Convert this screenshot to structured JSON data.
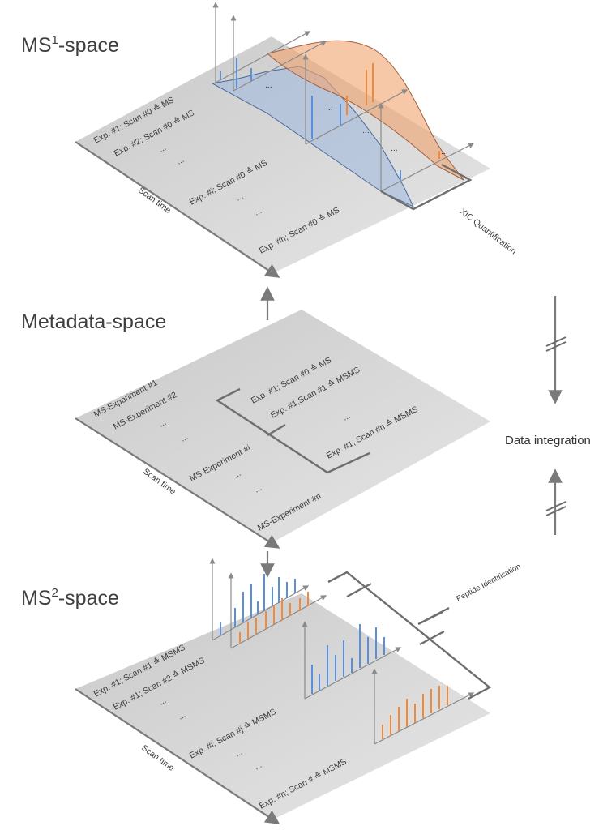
{
  "ms1": {
    "title_main": "MS",
    "title_sup": "1",
    "title_rest": "-space",
    "rows": [
      "Exp. #1; Scan #0 ≙ MS",
      "Exp. #2; Scan #0 ≙ MS",
      "...",
      "...",
      "Exp. #i; Scan #0 ≙ MS",
      "...",
      "...",
      "Exp. #n; Scan #0 ≙ MS"
    ],
    "axis": "Scan time",
    "dots": [
      "...",
      "...",
      "...",
      "...",
      "..."
    ],
    "quant_label": "XIC Quantification"
  },
  "meta": {
    "title": "Metadata-space",
    "rows": [
      "MS-Experiment #1",
      "MS-Experiment #2",
      "...",
      "...",
      "MS-Experiment #i",
      "...",
      "...",
      "MS-Experiment  #n"
    ],
    "axis": "Scan time",
    "subrows": [
      "Exp. #1; Scan #0 ≙ MS",
      "Exp. #1;Scan #1 ≙ MSMS",
      "...",
      "Exp. #1; Scan #n ≙ MSMS"
    ]
  },
  "ms2": {
    "title_main": "MS",
    "title_sup": "2",
    "title_rest": "-space",
    "rows": [
      "Exp. #1; Scan #1 ≙ MSMS",
      "Exp. #1; Scan #2 ≙ MSMS",
      "...",
      "...",
      "Exp. #i; Scan #j ≙ MSMS",
      "...",
      "...",
      "Exp. #n; Scan # ≙ MSMS"
    ],
    "axis": "Scan time",
    "peptide_label": "Peptide Identification"
  },
  "integration_label": "Data integration",
  "colors": {
    "plane": "#d2d2d2",
    "blue": "#5b8fd9",
    "orange": "#ef8a3c",
    "axis": "#8a8a8a",
    "bracket": "#6e6e6e"
  }
}
